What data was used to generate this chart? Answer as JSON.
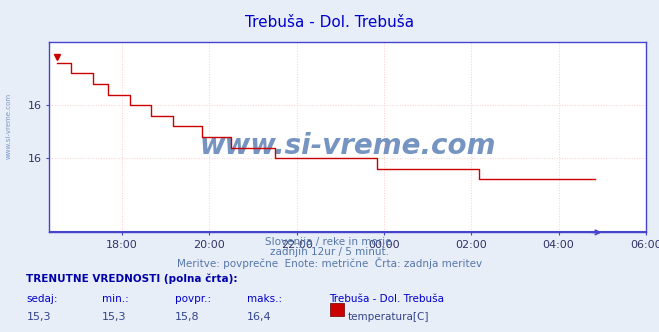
{
  "title": "Trebuša - Dol. Trebuša",
  "subtitle_line1": "Slovenija / reke in morje.",
  "subtitle_line2": "zadnjih 12ur / 5 minut.",
  "subtitle_line3": "Meritve: povprečne  Enote: metrične  Črta: zadnja meritev",
  "watermark": "www.si-vreme.com",
  "bg_color": "#e8eef8",
  "plot_bg_color": "#ffffff",
  "grid_color": "#ffcccc",
  "line_color": "#cc0000",
  "axis_color": "#4444cc",
  "title_color": "#0000cc",
  "watermark_color": "#6688bb",
  "subtitle_color": "#5577aa",
  "bottom_title_color": "#0000aa",
  "legend_color": "#0000cc",
  "value_color": "#334488",
  "temp_color": "#cc0000",
  "sedaj": "15,3",
  "min_val": "15,3",
  "povpr_val": "15,8",
  "maks_val": "16,4",
  "station_name": "Trebuša - Dol. Trebuša",
  "series_label": "temperatura[C]",
  "xlim": [
    -11.667,
    1.0
  ],
  "ylim": [
    14.8,
    16.6
  ],
  "y_ticks": [
    15.5,
    16.0
  ],
  "y_tick_labels": [
    "16",
    "16"
  ],
  "x_tick_pos": [
    -10.0,
    -8.0,
    -6.0,
    -4.0,
    -2.0,
    0.0,
    2.0
  ],
  "x_tick_labels": [
    "18:00",
    "20:00",
    "22:00",
    "00:00",
    "02:00",
    "04:00",
    "06:00"
  ],
  "time_points": [
    -11.5,
    -11.33,
    -11.17,
    -11.0,
    -10.83,
    -10.67,
    -10.5,
    -10.33,
    -10.17,
    -10.0,
    -9.83,
    -9.67,
    -9.5,
    -9.33,
    -9.17,
    -9.0,
    -8.83,
    -8.67,
    -8.5,
    -8.33,
    -8.17,
    -8.0,
    -7.83,
    -7.67,
    -7.5,
    -7.33,
    -7.17,
    -7.0,
    -6.83,
    -6.67,
    -6.5,
    -6.33,
    -6.17,
    -6.0,
    -5.83,
    -5.67,
    -5.5,
    -5.33,
    -5.17,
    -5.0,
    -4.83,
    -4.67,
    -4.5,
    -4.33,
    -4.17,
    -4.0,
    -3.83,
    -3.67,
    -3.5,
    -3.33,
    -3.17,
    -3.0,
    -2.83,
    -2.67,
    -2.5,
    -2.33,
    -2.17,
    -2.0,
    -1.83,
    -1.67,
    -1.5,
    -1.33,
    -1.17,
    -1.0,
    -0.83,
    -0.67,
    -0.5,
    -0.33,
    -0.17,
    0.0,
    0.17,
    0.33,
    0.5,
    0.67,
    0.83
  ],
  "temp_values": [
    16.4,
    16.4,
    16.3,
    16.3,
    16.3,
    16.2,
    16.2,
    16.1,
    16.1,
    16.1,
    16.0,
    16.0,
    16.0,
    15.9,
    15.9,
    15.9,
    15.8,
    15.8,
    15.8,
    15.8,
    15.7,
    15.7,
    15.7,
    15.7,
    15.6,
    15.6,
    15.6,
    15.6,
    15.6,
    15.6,
    15.5,
    15.5,
    15.5,
    15.5,
    15.5,
    15.5,
    15.5,
    15.5,
    15.5,
    15.5,
    15.5,
    15.5,
    15.5,
    15.5,
    15.4,
    15.4,
    15.4,
    15.4,
    15.4,
    15.4,
    15.4,
    15.4,
    15.4,
    15.4,
    15.4,
    15.4,
    15.4,
    15.4,
    15.3,
    15.3,
    15.3,
    15.3,
    15.3,
    15.3,
    15.3,
    15.3,
    15.3,
    15.3,
    15.3,
    15.3,
    15.3,
    15.3,
    15.3,
    15.3,
    15.3
  ]
}
